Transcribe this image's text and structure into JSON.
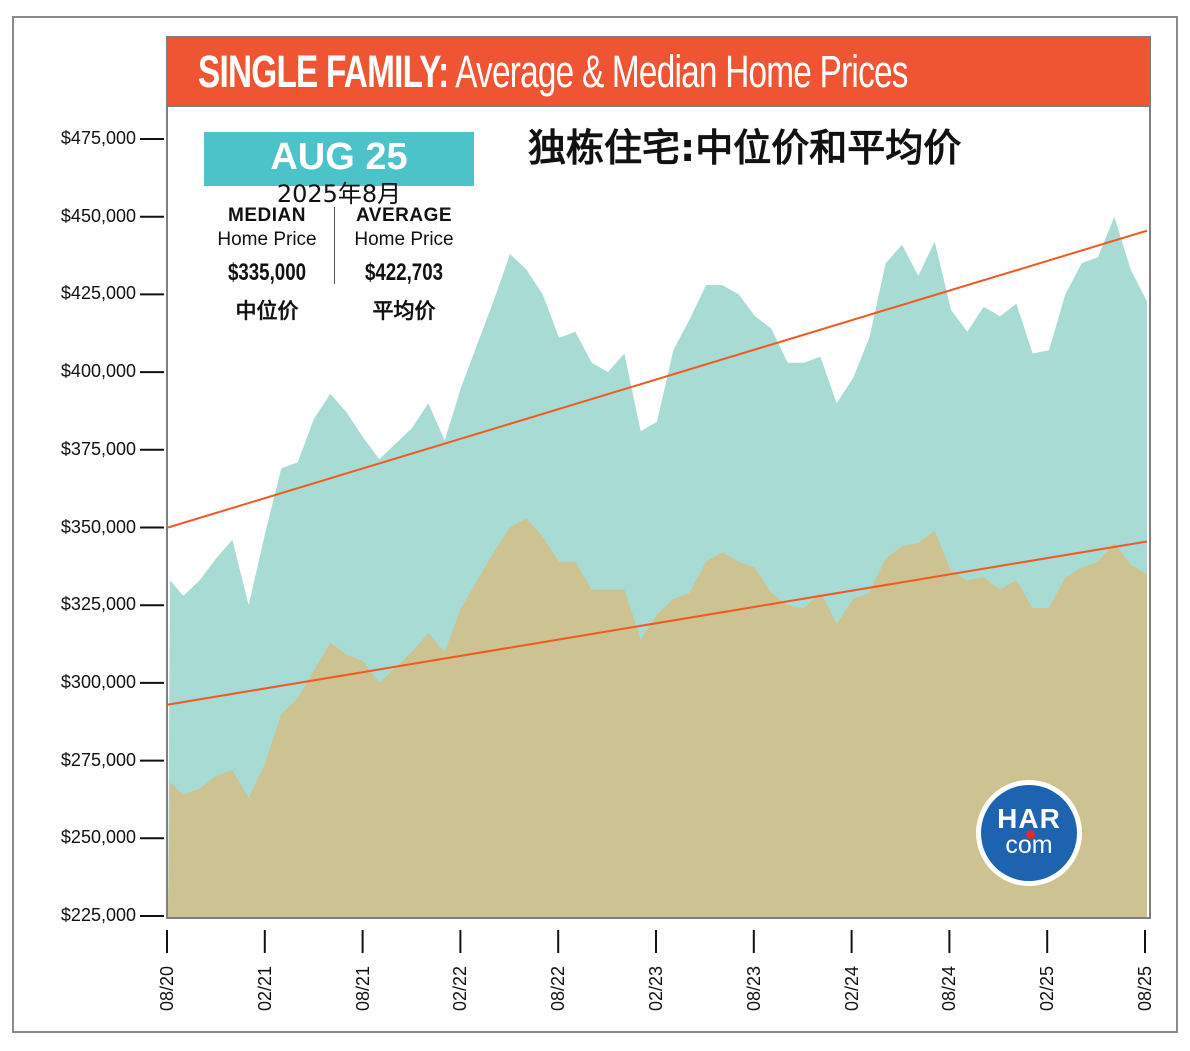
{
  "title": {
    "bold": "SINGLE FAMILY:",
    "rest": " Average & Median Home Prices",
    "chinese": "独栋住宅:中位价和平均价"
  },
  "summary": {
    "month_badge": "AUG 25",
    "month_chinese": "2025年8月",
    "median": {
      "head": "MEDIAN",
      "sub": "Home Price",
      "value": "$335,000",
      "chinese": "中位价"
    },
    "average": {
      "head": "AVERAGE",
      "sub": "Home Price",
      "value": "$422,703",
      "chinese": "平均价"
    }
  },
  "logo": {
    "top": "HAR",
    "bottom": "com",
    "icon": "har-logo-icon"
  },
  "colors": {
    "title_bar": "#f05533",
    "badge": "#4bc3c8",
    "average_fill": "#a8dbd3",
    "median_fill": "#cdc291",
    "trend_line": "#f05a22",
    "logo_blue": "#1d63b0"
  },
  "chart_data": {
    "type": "area",
    "title": "SINGLE FAMILY: Average & Median Home Prices",
    "xlabel": "",
    "ylabel": "",
    "ylim": [
      225000,
      475000
    ],
    "yticks": [
      225000,
      250000,
      275000,
      300000,
      325000,
      350000,
      375000,
      400000,
      425000,
      450000,
      475000
    ],
    "ytick_labels": [
      "$225,000",
      "$250,000",
      "$275,000",
      "$300,000",
      "$325,000",
      "$350,000",
      "$375,000",
      "$400,000",
      "$425,000",
      "$450,000",
      "$475,000"
    ],
    "xtick_labels": [
      "08/20",
      "02/21",
      "08/21",
      "02/22",
      "08/22",
      "02/23",
      "08/23",
      "02/24",
      "08/24",
      "02/25",
      "08/25"
    ],
    "months": 61,
    "grid": false,
    "series": [
      {
        "name": "Average Home Price",
        "values": [
          333000,
          328000,
          333000,
          340000,
          346000,
          325000,
          348000,
          369000,
          371000,
          385000,
          393000,
          387000,
          379000,
          372000,
          377000,
          382000,
          390000,
          378000,
          395000,
          409000,
          423000,
          438000,
          433000,
          425000,
          411000,
          413000,
          403000,
          400000,
          406000,
          381000,
          384000,
          407000,
          417000,
          428000,
          428000,
          425000,
          418000,
          414000,
          403000,
          403000,
          405000,
          390000,
          398000,
          411000,
          435000,
          441000,
          431000,
          442000,
          420000,
          413000,
          421000,
          418000,
          422000,
          406000,
          407000,
          425000,
          435000,
          437000,
          450000,
          433000,
          422703
        ]
      },
      {
        "name": "Median Home Price",
        "values": [
          268000,
          264000,
          266000,
          270000,
          272000,
          263000,
          274000,
          290000,
          295000,
          304000,
          313000,
          309000,
          307000,
          300000,
          305000,
          310000,
          316000,
          310000,
          324000,
          333000,
          342000,
          350000,
          353000,
          347000,
          339000,
          339000,
          330000,
          330000,
          330000,
          314000,
          322000,
          327000,
          329000,
          339000,
          342000,
          339000,
          337000,
          329000,
          325000,
          324000,
          329000,
          319000,
          327000,
          329000,
          340000,
          344000,
          345000,
          349000,
          336000,
          333000,
          334000,
          330000,
          333000,
          324000,
          324000,
          334000,
          337000,
          339000,
          345000,
          338000,
          335000
        ]
      }
    ],
    "trend_lines": [
      {
        "name": "Average trend",
        "start": 350000,
        "end": 445500
      },
      {
        "name": "Median trend",
        "start": 293000,
        "end": 345500
      }
    ]
  }
}
